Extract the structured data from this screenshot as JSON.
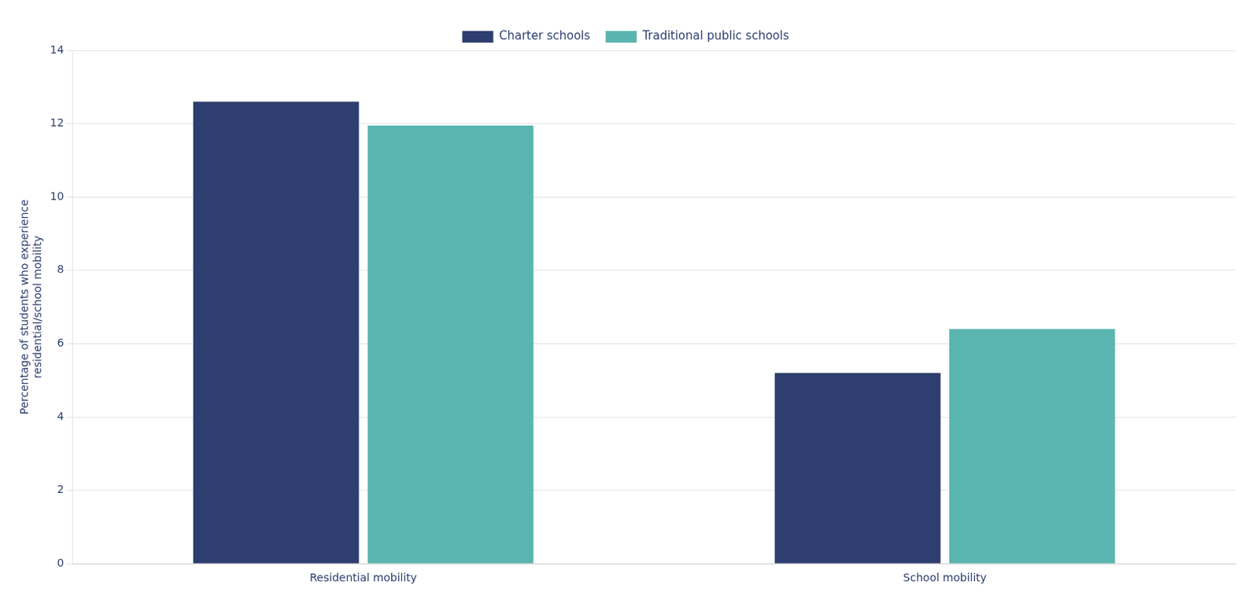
{
  "chart_data": {
    "type": "bar",
    "categories": [
      "Residential mobility",
      "School mobility"
    ],
    "series": [
      {
        "name": "Charter schools",
        "color": "#2e3f6f",
        "values": [
          12.6,
          5.2
        ]
      },
      {
        "name": "Traditional public schools",
        "color": "#5ab5b0",
        "values": [
          11.95,
          6.4
        ]
      }
    ],
    "ylabel": "Percentage of students who experience\nresidential/school mobility",
    "ylim": [
      0,
      14
    ],
    "yticks": [
      0,
      2,
      4,
      6,
      8,
      10,
      12,
      14
    ],
    "grid": true,
    "legend": "top"
  }
}
